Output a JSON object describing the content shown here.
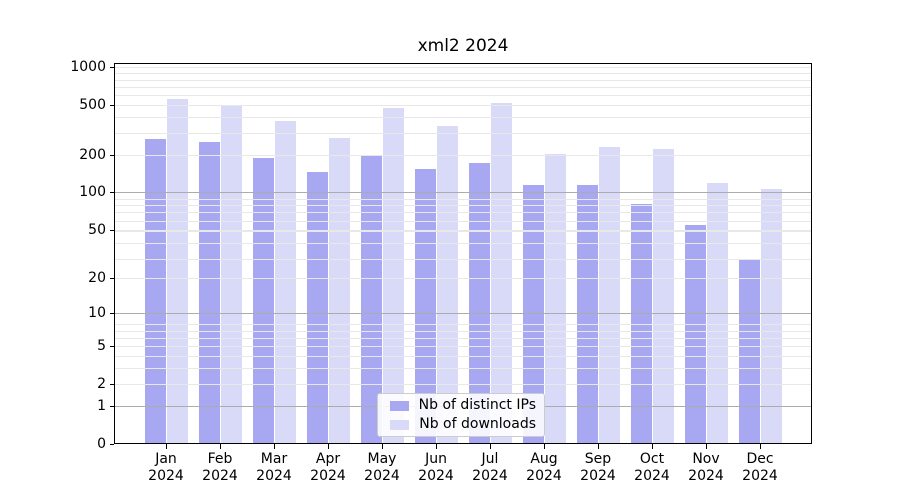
{
  "chart_data": {
    "type": "bar",
    "title": "xml2 2024",
    "categories": [
      "Jan",
      "Feb",
      "Mar",
      "Apr",
      "May",
      "Jun",
      "Jul",
      "Aug",
      "Sep",
      "Oct",
      "Nov",
      "Dec"
    ],
    "year_label": "2024",
    "series": [
      {
        "key": "distinct_ips",
        "name": "Nb of distinct IPs",
        "color": "#a8a8f2",
        "values": [
          270,
          255,
          188,
          147,
          198,
          154,
          172,
          115,
          114,
          81,
          55,
          28
        ]
      },
      {
        "key": "downloads",
        "name": "Nb of downloads",
        "color": "#d9d9f8",
        "values": [
          555,
          495,
          375,
          275,
          475,
          340,
          520,
          205,
          230,
          225,
          120,
          106
        ]
      }
    ],
    "yscale": "log1p",
    "ylim": [
      0,
      1090
    ],
    "y_ticks": [
      0,
      1,
      2,
      5,
      10,
      20,
      50,
      100,
      200,
      500,
      1000
    ],
    "major_grid_values": [
      1,
      10,
      100
    ],
    "grid": {
      "minor_color": "#e8e8e8",
      "major_color": "#ababab",
      "orientation": "horizontal"
    },
    "axis_color": "#000000",
    "legend_position": "lower center",
    "xlabel": "",
    "ylabel": ""
  }
}
